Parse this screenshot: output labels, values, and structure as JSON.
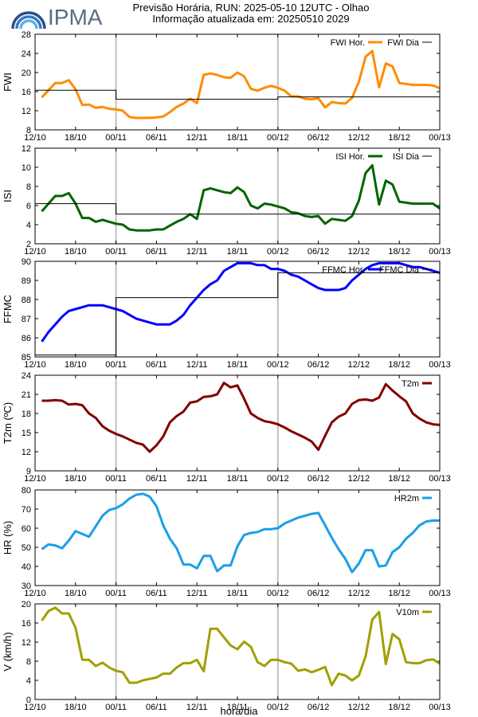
{
  "header": {
    "logo_text": "IPMA",
    "title_line1": "Previsão Horária, RUN: 2025-05-10 12UTC - Olhao",
    "title_line2": "Informação atualizada em: 20250510 2029"
  },
  "xlabel": "hora/dia",
  "colors": {
    "fwi": "#ff8c00",
    "isi": "#006400",
    "ffmc": "#0000ff",
    "t2m": "#800000",
    "hr2m": "#1a9fe8",
    "v10m": "#a0a000",
    "daily": "#000000",
    "dayline": "#c0c0c0"
  },
  "chart_data": [
    {
      "type": "line",
      "ylabel": "FWI",
      "ylim": [
        8,
        28
      ],
      "yticks": [
        8,
        12,
        16,
        20,
        24,
        28
      ],
      "xlim": [
        0,
        60
      ],
      "xticks": [
        "12/10",
        "18/10",
        "00/11",
        "06/11",
        "12/11",
        "18/11",
        "00/12",
        "06/12",
        "12/12",
        "18/12",
        "00/13"
      ],
      "legend": [
        {
          "label": "FWI Hor.",
          "series": "hourly"
        },
        {
          "label": "FWI Dia",
          "series": "daily"
        }
      ],
      "series": [
        {
          "name": "FWI Hor.",
          "role": "hourly",
          "x": [
            1,
            2,
            3,
            4,
            5,
            6,
            7,
            8,
            9,
            10,
            11,
            12,
            13,
            14,
            15,
            16,
            17,
            18,
            19,
            20,
            21,
            22,
            23,
            24,
            25,
            26,
            27,
            28,
            29,
            30,
            31,
            32,
            33,
            34,
            35,
            36,
            37,
            38,
            39,
            40,
            41,
            42,
            43,
            44,
            45,
            46,
            47,
            48,
            49,
            50,
            51,
            52,
            53,
            54,
            55,
            56,
            57,
            58,
            59,
            60
          ],
          "values": [
            14.8,
            16.3,
            17.8,
            17.8,
            18.4,
            16.5,
            13.2,
            13.3,
            12.6,
            12.8,
            12.4,
            12.3,
            12,
            10.7,
            10.5,
            10.5,
            10.5,
            10.6,
            10.8,
            11.7,
            12.8,
            13.5,
            14.5,
            13.6,
            19.5,
            19.8,
            19.5,
            19,
            18.9,
            20,
            19.2,
            16.6,
            16.2,
            16.8,
            17.2,
            16.8,
            16.2,
            15,
            15,
            14.5,
            14.4,
            14.6,
            12.7,
            13.8,
            13.6,
            13.5,
            14.7,
            18,
            23.3,
            24.5,
            16.9,
            21.9,
            21.3,
            17.8,
            17.6,
            17.4,
            17.4,
            17.4,
            17.3,
            16.7
          ]
        },
        {
          "name": "FWI Dia",
          "role": "daily",
          "x": [
            0,
            12,
            12,
            36,
            36,
            60
          ],
          "values": [
            16.3,
            16.3,
            14.4,
            14.4,
            14.9,
            14.9
          ]
        }
      ]
    },
    {
      "type": "line",
      "ylabel": "ISI",
      "ylim": [
        2,
        12
      ],
      "yticks": [
        2,
        4,
        6,
        8,
        10,
        12
      ],
      "xlim": [
        0,
        60
      ],
      "xticks": [
        "12/10",
        "18/10",
        "00/11",
        "06/11",
        "12/11",
        "18/11",
        "00/12",
        "06/12",
        "12/12",
        "18/12",
        "00/13"
      ],
      "legend": [
        {
          "label": "ISI Hor.",
          "series": "hourly"
        },
        {
          "label": "ISI Dia",
          "series": "daily"
        }
      ],
      "series": [
        {
          "name": "ISI Hor.",
          "role": "hourly",
          "x": [
            1,
            2,
            3,
            4,
            5,
            6,
            7,
            8,
            9,
            10,
            11,
            12,
            13,
            14,
            15,
            16,
            17,
            18,
            19,
            20,
            21,
            22,
            23,
            24,
            25,
            26,
            27,
            28,
            29,
            30,
            31,
            32,
            33,
            34,
            35,
            36,
            37,
            38,
            39,
            40,
            41,
            42,
            43,
            44,
            45,
            46,
            47,
            48,
            49,
            50,
            51,
            52,
            53,
            54,
            55,
            56,
            57,
            58,
            59,
            60
          ],
          "values": [
            5.4,
            6.2,
            7,
            7,
            7.3,
            6.2,
            4.7,
            4.7,
            4.3,
            4.5,
            4.3,
            4.1,
            4,
            3.5,
            3.4,
            3.4,
            3.4,
            3.5,
            3.5,
            3.9,
            4.3,
            4.6,
            5.1,
            4.6,
            7.6,
            7.8,
            7.6,
            7.4,
            7.3,
            7.9,
            7.4,
            6,
            5.7,
            6.2,
            6.1,
            5.9,
            5.7,
            5.3,
            5.2,
            4.9,
            4.8,
            4.9,
            4.1,
            4.6,
            4.5,
            4.4,
            4.9,
            6.5,
            9.4,
            10.2,
            6.1,
            8.6,
            8.2,
            6.4,
            6.3,
            6.2,
            6.2,
            6.2,
            6.2,
            5.7
          ]
        },
        {
          "name": "ISI Dia",
          "role": "daily",
          "x": [
            0,
            12,
            12,
            60
          ],
          "values": [
            6.2,
            6.2,
            5.1,
            5.1
          ]
        }
      ]
    },
    {
      "type": "line",
      "ylabel": "FFMC",
      "ylim": [
        85,
        90
      ],
      "yticks": [
        85,
        86,
        87,
        88,
        89,
        90
      ],
      "xlim": [
        0,
        60
      ],
      "xticks": [
        "12/10",
        "18/10",
        "00/11",
        "06/11",
        "12/11",
        "18/11",
        "00/12",
        "06/12",
        "12/12",
        "18/12",
        "00/13"
      ],
      "legend": [
        {
          "label": "FFMC Hor.",
          "series": "hourly"
        },
        {
          "label": "FFMC Dia",
          "series": "daily"
        }
      ],
      "series": [
        {
          "name": "FFMC Hor.",
          "role": "hourly",
          "x": [
            1,
            2,
            3,
            4,
            5,
            6,
            7,
            8,
            9,
            10,
            11,
            12,
            13,
            14,
            15,
            16,
            17,
            18,
            19,
            20,
            21,
            22,
            23,
            24,
            25,
            26,
            27,
            28,
            29,
            30,
            31,
            32,
            33,
            34,
            35,
            36,
            37,
            38,
            39,
            40,
            41,
            42,
            43,
            44,
            45,
            46,
            47,
            48,
            49,
            50,
            51,
            52,
            53,
            54,
            55,
            56,
            57,
            58,
            59,
            60
          ],
          "values": [
            85.8,
            86.3,
            86.7,
            87.1,
            87.4,
            87.5,
            87.6,
            87.7,
            87.7,
            87.7,
            87.6,
            87.5,
            87.4,
            87.2,
            87,
            86.9,
            86.8,
            86.7,
            86.7,
            86.7,
            86.9,
            87.2,
            87.7,
            88.1,
            88.5,
            88.8,
            89,
            89.5,
            89.7,
            89.9,
            89.9,
            89.9,
            89.8,
            89.8,
            89.6,
            89.6,
            89.5,
            89.3,
            89.2,
            89,
            88.8,
            88.6,
            88.5,
            88.5,
            88.5,
            88.6,
            89,
            89.3,
            89.6,
            89.8,
            89.9,
            89.9,
            89.9,
            89.9,
            89.8,
            89.7,
            89.7,
            89.6,
            89.5,
            89.4
          ]
        },
        {
          "name": "FFMC Dia",
          "role": "daily",
          "x": [
            0,
            12,
            12,
            36,
            36,
            60
          ],
          "values": [
            85.1,
            85.1,
            88.1,
            88.1,
            89.4,
            89.4
          ]
        }
      ]
    },
    {
      "type": "line",
      "ylabel": "T2m (ºC)",
      "ylim": [
        9,
        24
      ],
      "yticks": [
        9,
        12,
        15,
        18,
        21,
        24
      ],
      "xlim": [
        0,
        60
      ],
      "xticks": [
        "12/10",
        "18/10",
        "00/11",
        "06/11",
        "12/11",
        "18/11",
        "00/12",
        "06/12",
        "12/12",
        "18/12",
        "00/13"
      ],
      "legend": [
        {
          "label": "T2m",
          "series": "hourly"
        }
      ],
      "series": [
        {
          "name": "T2m",
          "role": "hourly",
          "x": [
            1,
            2,
            3,
            4,
            5,
            6,
            7,
            8,
            9,
            10,
            11,
            12,
            13,
            14,
            15,
            16,
            17,
            18,
            19,
            20,
            21,
            22,
            23,
            24,
            25,
            26,
            27,
            28,
            29,
            30,
            31,
            32,
            33,
            34,
            35,
            36,
            37,
            38,
            39,
            40,
            41,
            42,
            43,
            44,
            45,
            46,
            47,
            48,
            49,
            50,
            51,
            52,
            53,
            54,
            55,
            56,
            57,
            58,
            59,
            60
          ],
          "values": [
            20,
            20,
            20.1,
            20,
            19.4,
            19.5,
            19.3,
            18,
            17.3,
            16,
            15.3,
            14.8,
            14.4,
            13.9,
            13.4,
            13.1,
            12,
            13,
            14.4,
            16.6,
            17.6,
            18.3,
            19.7,
            19.9,
            20.6,
            20.7,
            21,
            22.8,
            22.1,
            22.4,
            20.3,
            18,
            17.3,
            16.8,
            16.6,
            16.3,
            15.8,
            15.2,
            14.7,
            14.2,
            13.6,
            12.3,
            14.5,
            16.6,
            17.5,
            18,
            19.5,
            20.1,
            20.2,
            20,
            20.5,
            22.6,
            21.6,
            20.7,
            19.9,
            18,
            17.2,
            16.6,
            16.3,
            16.2
          ]
        }
      ]
    },
    {
      "type": "line",
      "ylabel": "HR (%)",
      "ylim": [
        30,
        80
      ],
      "yticks": [
        30,
        40,
        50,
        60,
        70,
        80
      ],
      "xlim": [
        0,
        60
      ],
      "xticks": [
        "12/10",
        "18/10",
        "00/11",
        "06/11",
        "12/11",
        "18/11",
        "00/12",
        "06/12",
        "12/12",
        "18/12",
        "00/13"
      ],
      "legend": [
        {
          "label": "HR2m",
          "series": "hourly"
        }
      ],
      "series": [
        {
          "name": "HR2m",
          "role": "hourly",
          "x": [
            1,
            2,
            3,
            4,
            5,
            6,
            7,
            8,
            9,
            10,
            11,
            12,
            13,
            14,
            15,
            16,
            17,
            18,
            19,
            20,
            21,
            22,
            23,
            24,
            25,
            26,
            27,
            28,
            29,
            30,
            31,
            32,
            33,
            34,
            35,
            36,
            37,
            38,
            39,
            40,
            41,
            42,
            43,
            44,
            45,
            46,
            47,
            48,
            49,
            50,
            51,
            52,
            53,
            54,
            55,
            56,
            57,
            58,
            59,
            60
          ],
          "values": [
            49,
            51.5,
            51,
            49.5,
            53.5,
            58.5,
            57,
            55.5,
            61,
            66.5,
            69.5,
            70.5,
            72.5,
            75.5,
            77.5,
            78,
            76.5,
            71.5,
            61.5,
            54.5,
            49.5,
            41,
            41,
            39,
            45.5,
            45.5,
            37.5,
            40.5,
            40.5,
            50.5,
            56.5,
            57.5,
            58,
            59.5,
            59.5,
            60,
            62.5,
            64,
            65.5,
            66.5,
            67.5,
            68,
            61.5,
            55,
            49,
            44,
            37,
            41.5,
            48.5,
            48.5,
            40,
            40.5,
            47.5,
            50,
            54.5,
            57.5,
            61.5,
            63.5,
            64,
            64
          ]
        }
      ]
    },
    {
      "type": "line",
      "ylabel": "V (km/h)",
      "ylim": [
        0,
        20
      ],
      "yticks": [
        0,
        4,
        8,
        12,
        16,
        20
      ],
      "xlim": [
        0,
        60
      ],
      "xticks": [
        "12/10",
        "18/10",
        "00/11",
        "06/11",
        "12/11",
        "18/11",
        "00/12",
        "06/12",
        "12/12",
        "18/12",
        "00/13"
      ],
      "legend": [
        {
          "label": "V10m",
          "series": "hourly"
        }
      ],
      "series": [
        {
          "name": "V10m",
          "role": "hourly",
          "x": [
            1,
            2,
            3,
            4,
            5,
            6,
            7,
            8,
            9,
            10,
            11,
            12,
            13,
            14,
            15,
            16,
            17,
            18,
            19,
            20,
            21,
            22,
            23,
            24,
            25,
            26,
            27,
            28,
            29,
            30,
            31,
            32,
            33,
            34,
            35,
            36,
            37,
            38,
            39,
            40,
            41,
            42,
            43,
            44,
            45,
            46,
            47,
            48,
            49,
            50,
            51,
            52,
            53,
            54,
            55,
            56,
            57,
            58,
            59,
            60
          ],
          "values": [
            16.5,
            18.5,
            19.2,
            18,
            18,
            15,
            8.3,
            8.3,
            7,
            7.7,
            6.7,
            6,
            5.7,
            3.5,
            3.5,
            4,
            4.3,
            4.6,
            5.4,
            5.4,
            6.7,
            7.6,
            7.6,
            8.3,
            5.9,
            14.8,
            14.8,
            13,
            11.3,
            10.5,
            12.1,
            11,
            7.8,
            7,
            8.3,
            8.3,
            7.8,
            7.5,
            6,
            6.3,
            5.7,
            6.2,
            6.8,
            3,
            5.4,
            5,
            4,
            5,
            9,
            16.7,
            18.3,
            7.4,
            13.7,
            12.6,
            7.8,
            7.6,
            7.6,
            8.2,
            8.4,
            7.5
          ]
        }
      ]
    }
  ]
}
